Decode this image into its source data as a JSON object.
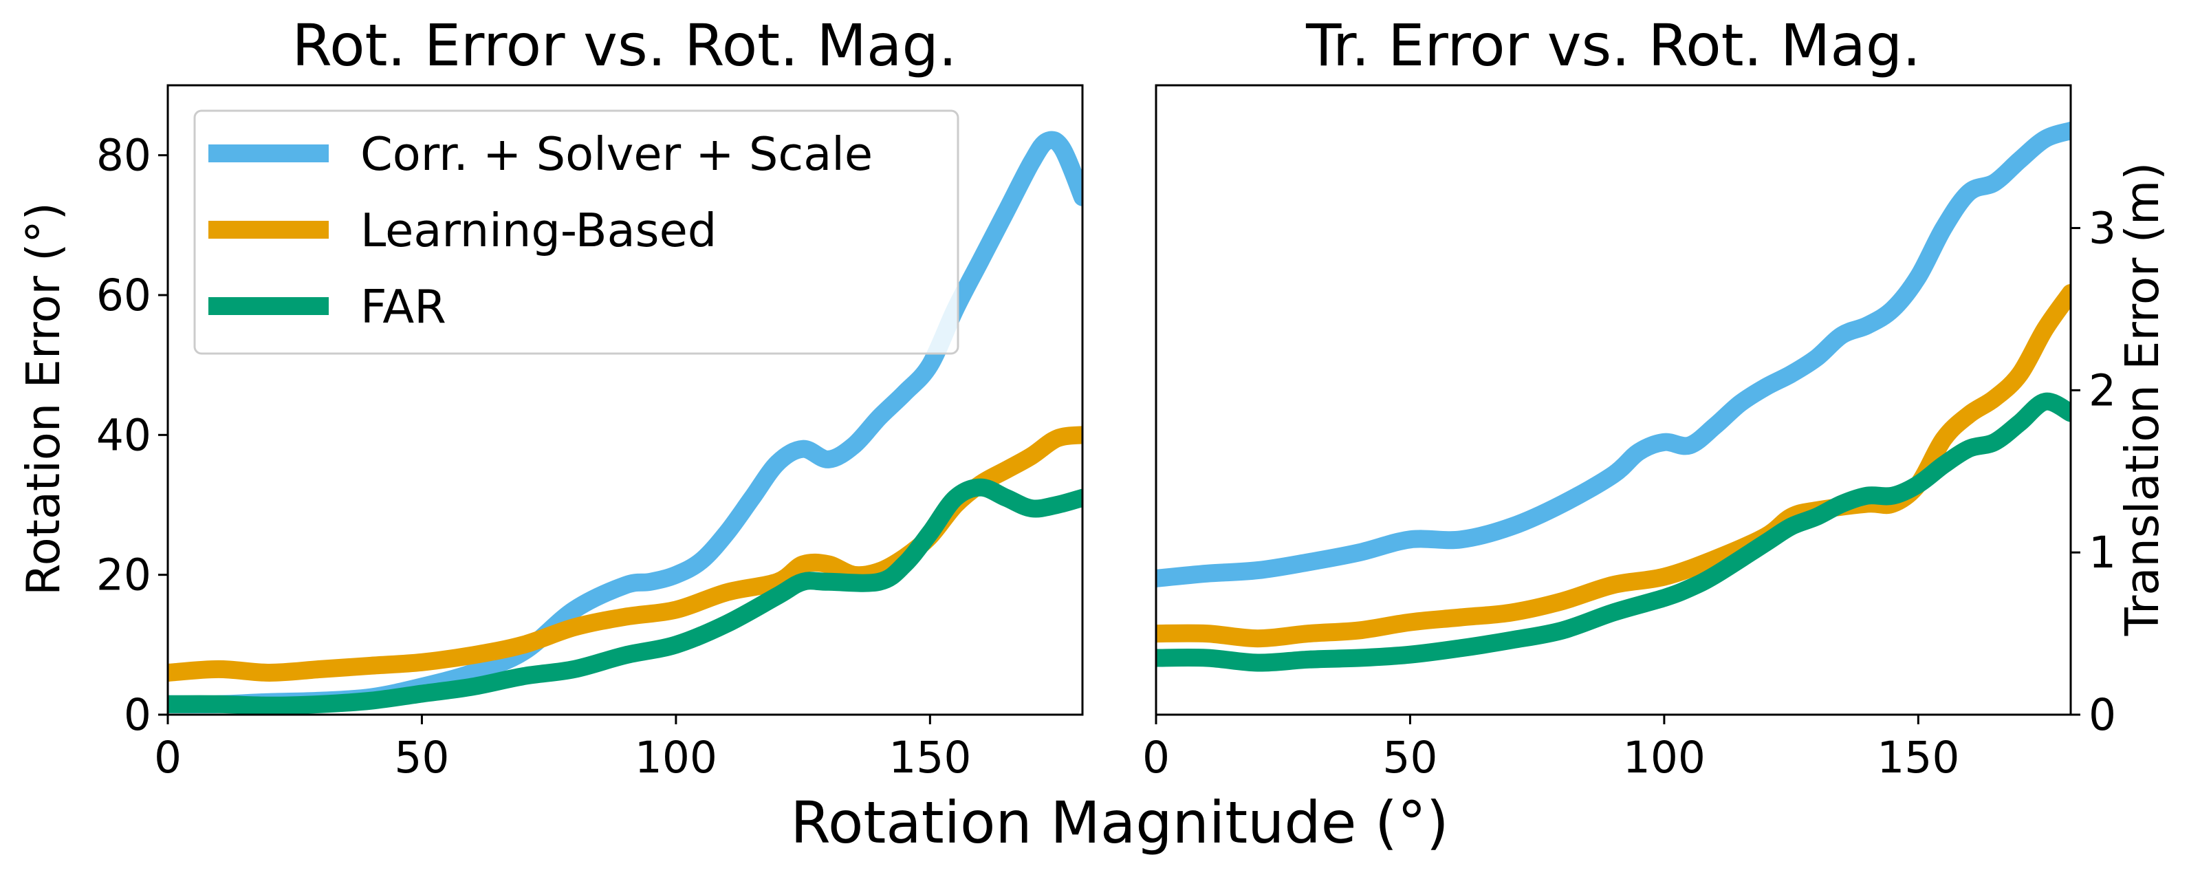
{
  "figure": {
    "xlabel": "Rotation Magnitude (°)"
  },
  "series_styles": [
    {
      "name": "Corr. + Solver + Scale",
      "color": "#56B4E9"
    },
    {
      "name": "Learning-Based",
      "color": "#E69F00"
    },
    {
      "name": "FAR",
      "color": "#009E73"
    }
  ],
  "chart_data": [
    {
      "type": "line",
      "title": "Rot. Error vs. Rot. Mag.",
      "xlabel": "",
      "ylabel": "Rotation Error (°)",
      "xlim": [
        0,
        180
      ],
      "ylim": [
        0,
        90
      ],
      "xticks": [
        0,
        50,
        100,
        150
      ],
      "yticks": [
        0,
        20,
        40,
        60,
        80
      ],
      "y_axis_side": "left",
      "legend": "upper-left",
      "grid": false,
      "series": [
        {
          "name": "Corr. + Solver + Scale",
          "x": [
            0,
            10,
            20,
            30,
            40,
            50,
            60,
            70,
            80,
            90,
            95,
            100,
            105,
            110,
            115,
            120,
            125,
            130,
            135,
            140,
            145,
            150,
            155,
            160,
            165,
            170,
            173,
            176,
            180
          ],
          "y": [
            1.5,
            1.5,
            1.8,
            2.0,
            2.5,
            4.0,
            6.0,
            9.0,
            15.0,
            18.5,
            19.0,
            20.0,
            22.0,
            26.0,
            31.0,
            36.0,
            38.0,
            36.5,
            38.5,
            42.5,
            46.0,
            50.0,
            58.0,
            65.0,
            72.0,
            79.0,
            82.0,
            81.0,
            74.0
          ]
        },
        {
          "name": "Learning-Based",
          "x": [
            0,
            10,
            20,
            30,
            40,
            50,
            60,
            70,
            80,
            90,
            100,
            110,
            120,
            125,
            130,
            135,
            140,
            145,
            150,
            155,
            160,
            165,
            170,
            175,
            180
          ],
          "y": [
            6.0,
            6.5,
            6.0,
            6.5,
            7.0,
            7.5,
            8.5,
            10.0,
            12.5,
            14.0,
            15.0,
            17.5,
            19.0,
            21.5,
            21.5,
            20.0,
            20.5,
            22.5,
            25.5,
            30.0,
            33.0,
            35.0,
            37.0,
            39.5,
            40.0
          ]
        },
        {
          "name": "FAR",
          "x": [
            0,
            10,
            20,
            30,
            40,
            50,
            60,
            70,
            80,
            90,
            100,
            110,
            120,
            125,
            130,
            140,
            145,
            150,
            155,
            160,
            165,
            170,
            175,
            180
          ],
          "y": [
            1.5,
            1.5,
            1.3,
            1.5,
            2.0,
            3.0,
            4.0,
            5.5,
            6.5,
            8.5,
            10.0,
            13.0,
            17.0,
            19.0,
            19.0,
            19.0,
            21.5,
            26.0,
            31.0,
            32.5,
            31.0,
            29.5,
            30.0,
            31.0
          ]
        }
      ]
    },
    {
      "type": "line",
      "title": "Tr. Error vs. Rot. Mag.",
      "xlabel": "",
      "ylabel": "Translation Error (m)",
      "xlim": [
        0,
        180
      ],
      "ylim": [
        0,
        3.88
      ],
      "xticks": [
        0,
        50,
        100,
        150
      ],
      "yticks": [
        0,
        1,
        2,
        3
      ],
      "y_axis_side": "right",
      "grid": false,
      "series": [
        {
          "name": "Corr. + Solver + Scale",
          "x": [
            0,
            10,
            20,
            30,
            40,
            50,
            60,
            70,
            80,
            90,
            95,
            100,
            105,
            110,
            115,
            120,
            125,
            130,
            135,
            140,
            145,
            150,
            155,
            160,
            165,
            170,
            175,
            180
          ],
          "y": [
            0.84,
            0.87,
            0.89,
            0.94,
            1.0,
            1.08,
            1.08,
            1.16,
            1.3,
            1.48,
            1.62,
            1.68,
            1.66,
            1.78,
            1.92,
            2.02,
            2.1,
            2.2,
            2.34,
            2.4,
            2.5,
            2.7,
            3.0,
            3.22,
            3.28,
            3.42,
            3.55,
            3.6
          ]
        },
        {
          "name": "Learning-Based",
          "x": [
            0,
            10,
            20,
            30,
            40,
            50,
            60,
            70,
            80,
            90,
            100,
            110,
            120,
            125,
            130,
            140,
            145,
            150,
            155,
            160,
            165,
            170,
            175,
            180
          ],
          "y": [
            0.5,
            0.5,
            0.47,
            0.5,
            0.52,
            0.57,
            0.6,
            0.63,
            0.7,
            0.8,
            0.85,
            0.96,
            1.1,
            1.22,
            1.26,
            1.3,
            1.3,
            1.42,
            1.7,
            1.85,
            1.95,
            2.1,
            2.38,
            2.6
          ]
        },
        {
          "name": "FAR",
          "x": [
            0,
            10,
            20,
            30,
            40,
            50,
            60,
            70,
            80,
            90,
            100,
            105,
            110,
            120,
            125,
            130,
            135,
            140,
            145,
            150,
            155,
            160,
            165,
            170,
            175,
            180
          ],
          "y": [
            0.35,
            0.35,
            0.32,
            0.34,
            0.35,
            0.37,
            0.41,
            0.46,
            0.52,
            0.63,
            0.72,
            0.78,
            0.86,
            1.06,
            1.16,
            1.22,
            1.3,
            1.35,
            1.35,
            1.42,
            1.54,
            1.64,
            1.68,
            1.8,
            1.93,
            1.86
          ]
        }
      ]
    }
  ]
}
